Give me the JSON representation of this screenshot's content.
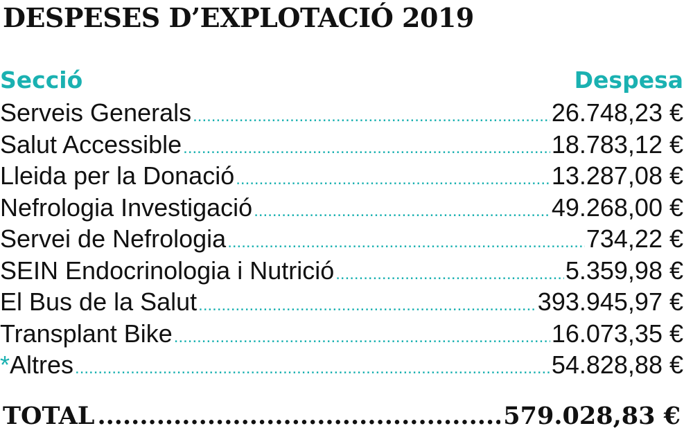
{
  "title": "DESPESES D’EXPLOTACIÓ 2019",
  "headers": {
    "section": "Secció",
    "amount": "Despesa"
  },
  "rows": [
    {
      "label": "Serveis Generals",
      "amount": "26.748,23 €"
    },
    {
      "label": "Salut Accessible",
      "amount": "18.783,12 €"
    },
    {
      "label": "Lleida per la Donació",
      "amount": "13.287,08 €"
    },
    {
      "label": "Nefrologia Investigació",
      "amount": "49.268,00 €"
    },
    {
      "label": "Servei de Nefrologia",
      "amount": "734,22 €"
    },
    {
      "label": "SEIN Endocrinologia i Nutrició",
      "amount": "5.359,98 €"
    },
    {
      "label": "El Bus de la Salut",
      "amount": "393.945,97 €"
    },
    {
      "label": "Transplant Bike",
      "amount": "16.073,35 €"
    },
    {
      "asterisk": "*",
      "label": "Altres",
      "amount": "54.828,88 €"
    }
  ],
  "total": {
    "label": "TOTAL",
    "amount": "579.028,83 €"
  },
  "colors": {
    "accent": "#1ab1b1",
    "text": "#111111"
  }
}
